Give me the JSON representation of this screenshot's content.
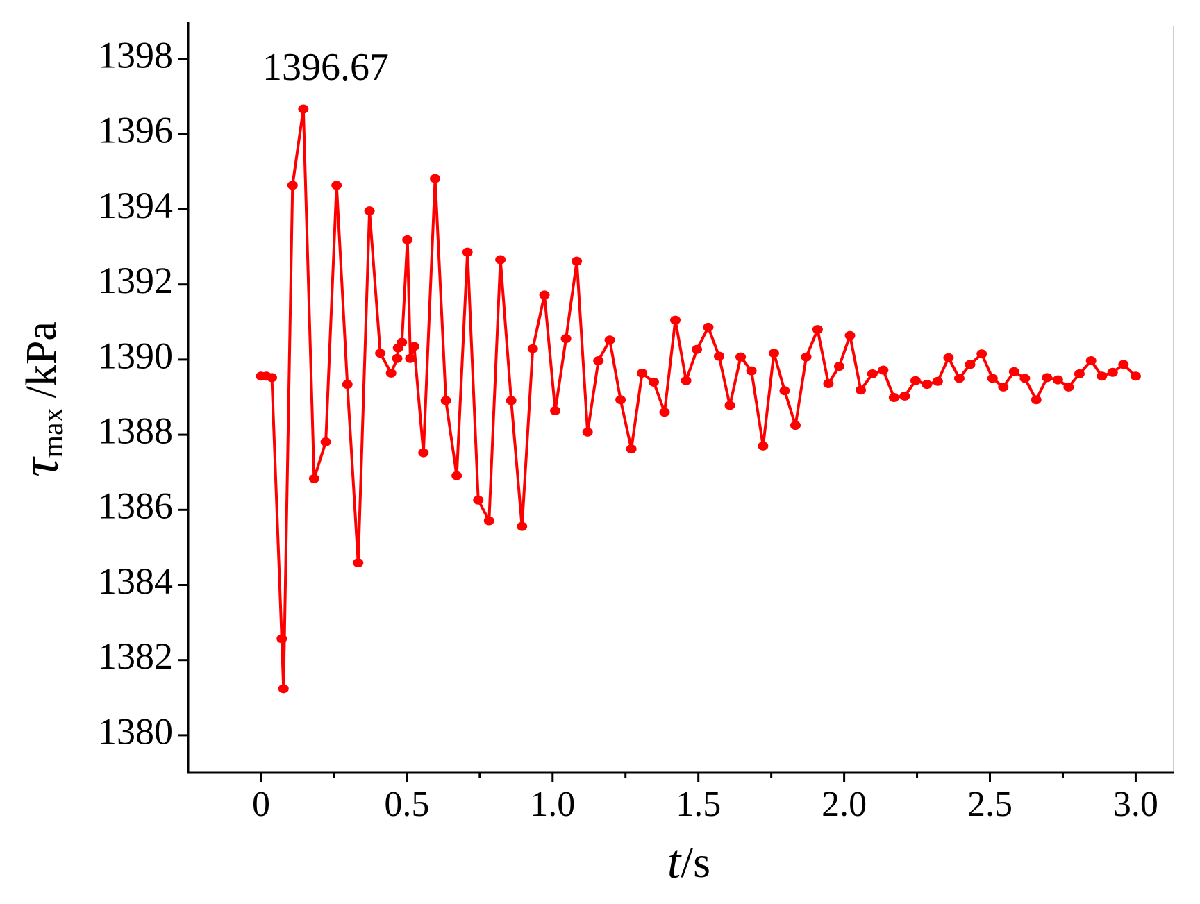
{
  "chart_data": {
    "type": "line",
    "annotation": "1396.67",
    "ylabel": {
      "symbol": "τ",
      "subscript": "max",
      "unit": "/kPa"
    },
    "xlabel": {
      "symbol": "t",
      "unit": "/s"
    },
    "xlim": [
      -0.25,
      3.13
    ],
    "ylim": [
      1379,
      1399
    ],
    "xticks": [
      0,
      0.5,
      {
        "value": 1,
        "label": "1.0"
      },
      1.5,
      {
        "value": 2,
        "label": "2.0"
      },
      2.5,
      {
        "value": 3,
        "label": "3.0"
      }
    ],
    "xminorticks": [
      0.25,
      0.75,
      1.25,
      1.75,
      2.25,
      2.75
    ],
    "yticks": [
      1380,
      1382,
      1384,
      1386,
      1388,
      1390,
      1392,
      1394,
      1396,
      1398
    ],
    "x": [
      0,
      0.018,
      0.037,
      0.071,
      0.077,
      0.108,
      0.145,
      0.182,
      0.222,
      0.259,
      0.296,
      0.333,
      0.372,
      0.409,
      0.446,
      0.467,
      0.47,
      0.483,
      0.502,
      0.512,
      0.525,
      0.557,
      0.597,
      0.634,
      0.671,
      0.708,
      0.745,
      0.782,
      0.821,
      0.858,
      0.895,
      0.932,
      0.972,
      1.009,
      1.046,
      1.083,
      1.12,
      1.157,
      1.196,
      1.233,
      1.27,
      1.307,
      1.347,
      1.384,
      1.421,
      1.458,
      1.495,
      1.534,
      1.571,
      1.608,
      1.645,
      1.682,
      1.722,
      1.759,
      1.796,
      1.833,
      1.87,
      1.909,
      1.946,
      1.983,
      2.02,
      2.057,
      2.097,
      2.134,
      2.171,
      2.208,
      2.245,
      2.284,
      2.321,
      2.358,
      2.395,
      2.432,
      2.472,
      2.509,
      2.546,
      2.583,
      2.62,
      2.659,
      2.696,
      2.733,
      2.77,
      2.807,
      2.847,
      2.884,
      2.921,
      2.958,
      3.0
    ],
    "series": [
      {
        "color": "#ff0000",
        "values": [
          1389.56,
          1389.56,
          1389.52,
          1382.57,
          1381.24,
          1394.64,
          1396.67,
          1386.83,
          1387.81,
          1394.64,
          1389.34,
          1384.59,
          1393.96,
          1390.17,
          1389.64,
          1390.03,
          1390.31,
          1390.46,
          1393.19,
          1390.03,
          1390.35,
          1387.52,
          1394.82,
          1388.91,
          1386.91,
          1392.86,
          1386.26,
          1385.71,
          1392.66,
          1388.91,
          1385.56,
          1390.29,
          1391.72,
          1388.64,
          1390.56,
          1392.62,
          1388.07,
          1389.97,
          1390.52,
          1388.93,
          1387.62,
          1389.64,
          1389.4,
          1388.6,
          1391.05,
          1389.44,
          1390.27,
          1390.86,
          1390.09,
          1388.78,
          1390.07,
          1389.7,
          1387.7,
          1390.17,
          1389.17,
          1388.25,
          1390.07,
          1390.8,
          1389.36,
          1389.82,
          1390.64,
          1389.19,
          1389.62,
          1389.72,
          1388.99,
          1389.03,
          1389.44,
          1389.34,
          1389.42,
          1390.05,
          1389.5,
          1389.87,
          1390.15,
          1389.5,
          1389.27,
          1389.68,
          1389.5,
          1388.93,
          1389.52,
          1389.46,
          1389.27,
          1389.62,
          1389.97,
          1389.56,
          1389.66,
          1389.87,
          1389.56
        ]
      }
    ]
  }
}
